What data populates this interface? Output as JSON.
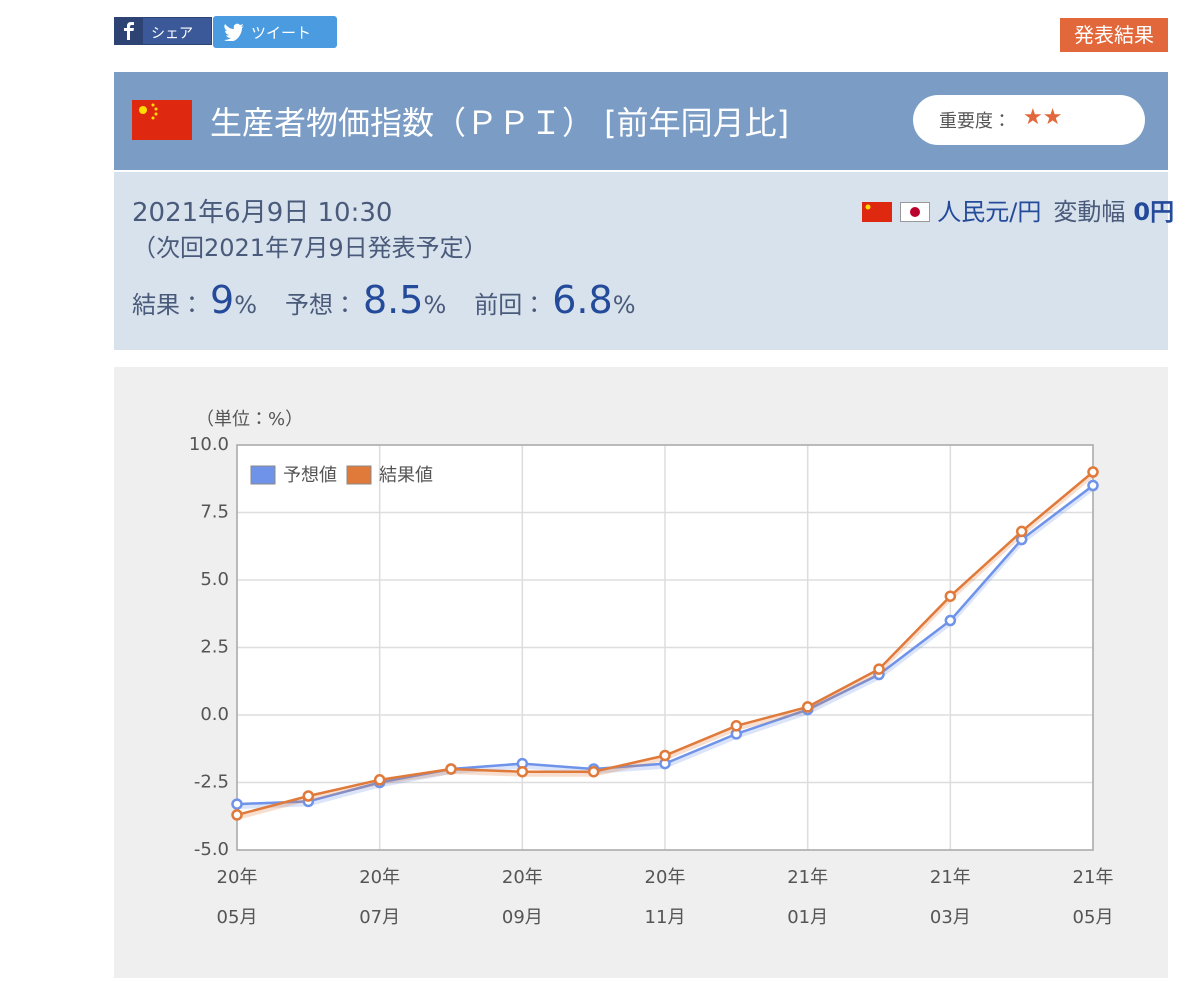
{
  "share": {
    "facebook": "シェア",
    "tweet": "ツイート"
  },
  "tag": "発表結果",
  "header": {
    "title": "生産者物価指数（ＰＰＩ） [前年同月比]",
    "importance_label": "重要度：",
    "importance": "★★"
  },
  "info": {
    "date": "2021年6月9日 10:30",
    "next": "（次回2021年7月9日発表予定）",
    "pair": "人民元/円",
    "range_label": "変動幅",
    "range": "0円",
    "results": [
      {
        "label": "結果：",
        "value": 9,
        "unit": "%"
      },
      {
        "label": "予想：",
        "value": 8.5,
        "unit": "%"
      },
      {
        "label": "前回：",
        "value": 6.8,
        "unit": "%"
      }
    ]
  },
  "chart_data": {
    "type": "line",
    "y_label": "（単位：%）",
    "categories": [
      [
        "20年",
        "05月"
      ],
      null,
      [
        "20年",
        "07月"
      ],
      null,
      [
        "20年",
        "09月"
      ],
      null,
      [
        "20年",
        "11月"
      ],
      null,
      [
        "21年",
        "01月"
      ],
      null,
      [
        "21年",
        "03月"
      ],
      null,
      [
        "21年",
        "05月"
      ]
    ],
    "series": [
      {
        "name": "予想値",
        "color": "#6f93e8",
        "values": [
          -3.3,
          -3.2,
          -2.5,
          -2.0,
          -1.8,
          -2.0,
          -1.8,
          -0.7,
          0.2,
          1.5,
          3.5,
          6.5,
          8.5
        ]
      },
      {
        "name": "結果値",
        "color": "#e07a3a",
        "values": [
          -3.7,
          -3.0,
          -2.4,
          -2.0,
          -2.1,
          -2.1,
          -1.5,
          -0.4,
          0.3,
          1.7,
          4.4,
          6.8,
          9.0
        ]
      }
    ],
    "ylim": [
      -5,
      10
    ],
    "yticks": [
      {
        "value": -5,
        "label": "-5.0"
      },
      -2.5,
      {
        "value": 0,
        "label": "0.0"
      },
      2.5,
      {
        "value": 5,
        "label": "5.0"
      },
      7.5,
      {
        "value": 10,
        "label": "10.0"
      }
    ],
    "grid": true,
    "legend": "upper left"
  }
}
